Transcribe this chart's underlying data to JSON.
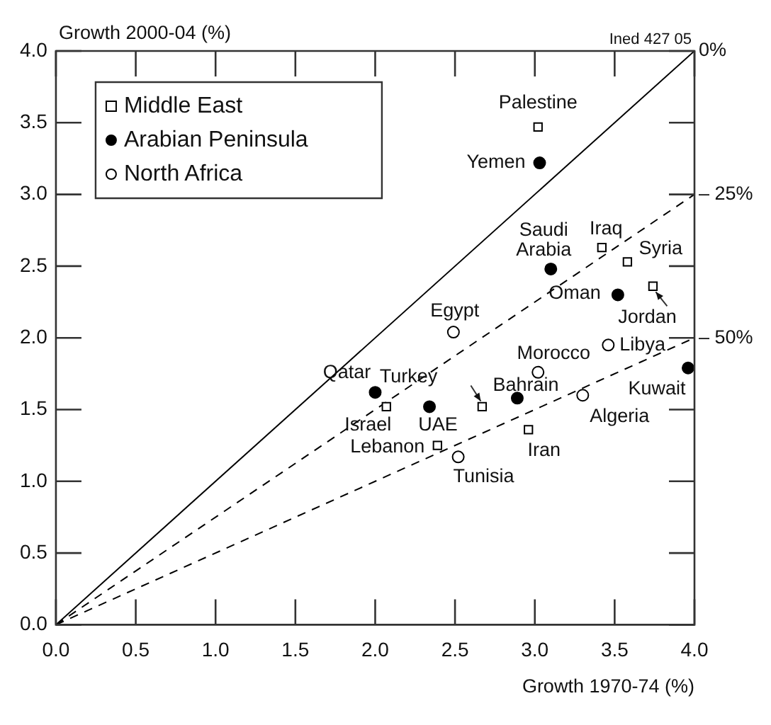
{
  "chart_data": {
    "type": "scatter",
    "xlabel": "Growth 1970-74 (%)",
    "ylabel": "Growth 2000-04 (%)",
    "xlim": [
      0,
      4
    ],
    "ylim": [
      0,
      4
    ],
    "xticks": [
      {
        "value": 0,
        "label": "0.0"
      },
      0.5,
      {
        "value": 1,
        "label": "1.0"
      },
      1.5,
      {
        "value": 2,
        "label": "2.0"
      },
      2.5,
      {
        "value": 3,
        "label": "3.0"
      },
      3.5,
      {
        "value": 4,
        "label": "4.0"
      }
    ],
    "yticks": [
      {
        "value": 0,
        "label": "0.0"
      },
      0.5,
      {
        "value": 1,
        "label": "1.0"
      },
      1.5,
      {
        "value": 2,
        "label": "2.0"
      },
      2.5,
      {
        "value": 3,
        "label": "3.0"
      },
      3.5,
      {
        "value": 4,
        "label": "4.0"
      }
    ],
    "grid": false,
    "legend": "top left",
    "series": [
      {
        "name": "Middle East",
        "marker": "square",
        "color": "#ffffff",
        "x": [
          3.02,
          3.42,
          3.58,
          3.74,
          2.07,
          2.67,
          2.96,
          2.39
        ],
        "values": [
          3.47,
          2.63,
          2.53,
          2.36,
          1.52,
          1.52,
          1.36,
          1.25
        ]
      },
      {
        "name": "Arabian Peninsula",
        "marker": "circle",
        "color": "#000000",
        "x": [
          3.03,
          3.1,
          3.52,
          3.96,
          2.0,
          2.34,
          2.89
        ],
        "values": [
          3.22,
          2.48,
          2.3,
          1.79,
          1.62,
          1.52,
          1.58
        ]
      },
      {
        "name": "North Africa",
        "marker": "circle",
        "color": "#ffffff",
        "x": [
          2.49,
          3.46,
          3.02,
          3.3,
          2.52
        ],
        "values": [
          2.04,
          1.95,
          1.76,
          1.6,
          1.17
        ]
      },
      {
        "name": "0%",
        "type": "line",
        "marker": "none",
        "line_style": "solid",
        "color": "#000000",
        "x": [
          0,
          4
        ],
        "values": [
          0,
          4
        ]
      },
      {
        "name": "– 25%",
        "type": "line",
        "marker": "none",
        "line_style": "dashed",
        "color": "#000000",
        "x": [
          0,
          4
        ],
        "values": [
          0,
          3
        ]
      },
      {
        "name": "– 50%",
        "type": "line",
        "marker": "none",
        "line_style": "dashed",
        "color": "#000000",
        "x": [
          0,
          4
        ],
        "values": [
          0,
          2
        ]
      }
    ],
    "annotations": [
      "Ined 427 05",
      {
        "text": "Palestine",
        "x": 3.02,
        "y": 3.47
      },
      {
        "text": "Yemen",
        "x": 3.03,
        "y": 3.22
      },
      {
        "text": "Saudi Arabia",
        "x": 3.1,
        "y": 2.48
      },
      {
        "text": "Iraq",
        "x": 3.42,
        "y": 2.63
      },
      {
        "text": "Syria",
        "x": 3.58,
        "y": 2.53
      },
      {
        "text": "Oman",
        "x": 3.52,
        "y": 2.3
      },
      {
        "text": "Jordan",
        "x": 3.74,
        "y": 2.36
      },
      {
        "text": "Egypt",
        "x": 2.49,
        "y": 2.04
      },
      {
        "text": "Libya",
        "x": 3.46,
        "y": 1.95
      },
      {
        "text": "Morocco",
        "x": 3.02,
        "y": 1.76
      },
      {
        "text": "Kuwait",
        "x": 3.96,
        "y": 1.79
      },
      {
        "text": "Qatar",
        "x": 2.0,
        "y": 1.62
      },
      {
        "text": "Israel",
        "x": 2.07,
        "y": 1.52
      },
      {
        "text": "UAE",
        "x": 2.34,
        "y": 1.52
      },
      {
        "text": "Turkey",
        "x": 2.67,
        "y": 1.52
      },
      {
        "text": "Bahrain",
        "x": 2.89,
        "y": 1.58
      },
      {
        "text": "Algeria",
        "x": 3.3,
        "y": 1.6
      },
      {
        "text": "Iran",
        "x": 2.96,
        "y": 1.36
      },
      {
        "text": "Lebanon",
        "x": 2.39,
        "y": 1.25
      },
      {
        "text": "Tunisia",
        "x": 2.52,
        "y": 1.17
      }
    ]
  }
}
